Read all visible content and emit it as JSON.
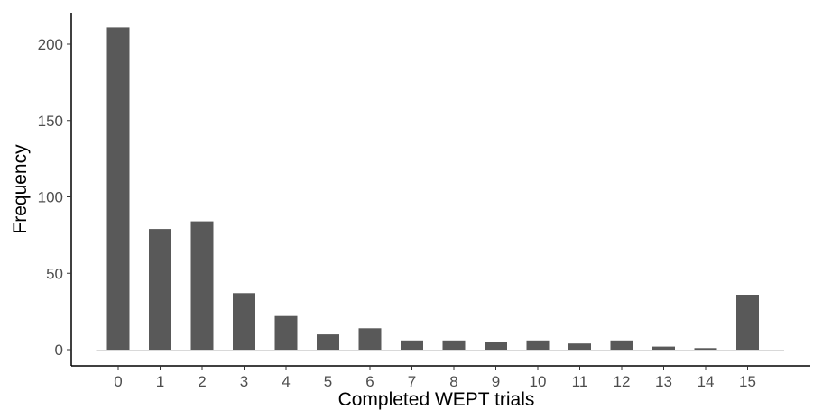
{
  "chart_data": {
    "type": "bar",
    "xlabel": "Completed WEPT trials",
    "ylabel": "Frequency",
    "categories": [
      "0",
      "1",
      "2",
      "3",
      "4",
      "5",
      "6",
      "7",
      "8",
      "9",
      "10",
      "11",
      "12",
      "13",
      "14",
      "15"
    ],
    "values": [
      211,
      79,
      84,
      37,
      22,
      10,
      14,
      6,
      6,
      5,
      6,
      4,
      6,
      2,
      1,
      36
    ],
    "ylim": [
      0,
      220
    ],
    "yticks": [
      0,
      50,
      100,
      150,
      200
    ],
    "grid": false,
    "legend": "none",
    "bar_color": "#595959",
    "axis_color": "#000000",
    "tick_label_color": "#4d4d4d"
  }
}
